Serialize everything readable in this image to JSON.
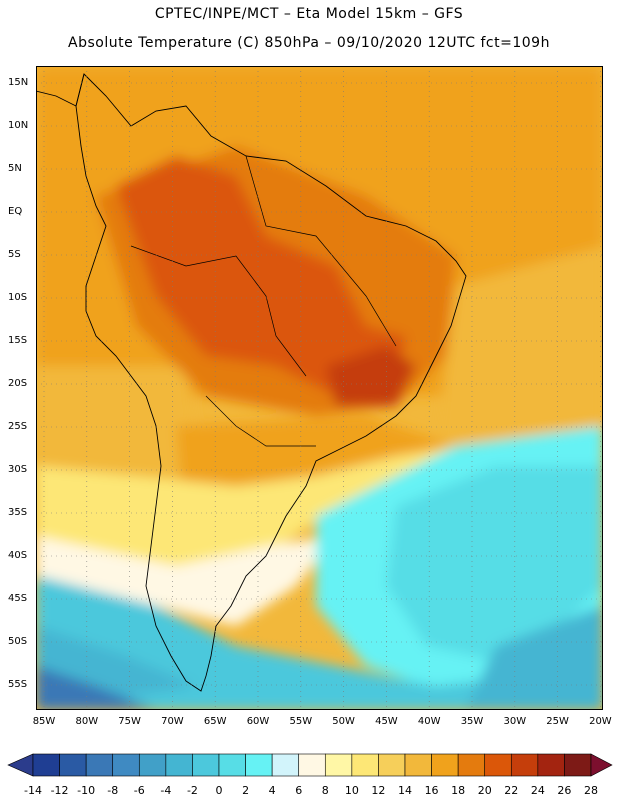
{
  "header": {
    "title_line1": "CPTEC/INPE/MCT –  Eta Model 15km – GFS",
    "title_line2": "Absolute Temperature (C) 850hPa – 09/10/2020 12UTC fct=109h"
  },
  "map": {
    "lat_labels": [
      "15N",
      "10N",
      "5N",
      "EQ",
      "5S",
      "10S",
      "15S",
      "20S",
      "25S",
      "30S",
      "35S",
      "40S",
      "45S",
      "50S",
      "55S"
    ],
    "lon_labels": [
      "85W",
      "80W",
      "75W",
      "70W",
      "65W",
      "60W",
      "55W",
      "50W",
      "45W",
      "40W",
      "35W",
      "30W",
      "25W",
      "20W"
    ],
    "fields": [
      {
        "name": "tropical-ocean-warm",
        "level": 20
      },
      {
        "name": "amazon-core",
        "level": 22
      },
      {
        "name": "andes-hot-band",
        "level": 24
      },
      {
        "name": "brazil-southeast-hot",
        "level": 24
      },
      {
        "name": "argentina-mid",
        "level": 16
      },
      {
        "name": "patagonia-cool",
        "level": 8
      },
      {
        "name": "south-atlantic-cold",
        "level": 2
      },
      {
        "name": "southern-ocean-cold",
        "level": 0
      }
    ]
  },
  "colorbar": {
    "tick_labels": [
      "-14",
      "-12",
      "-10",
      "-8",
      "-6",
      "-4",
      "-2",
      "0",
      "2",
      "4",
      "6",
      "8",
      "10",
      "12",
      "14",
      "16",
      "18",
      "20",
      "22",
      "24",
      "26",
      "28"
    ],
    "colors": [
      "#1f3e93",
      "#2a5aa4",
      "#3a78b6",
      "#3f8ac2",
      "#41a0c8",
      "#44b5d2",
      "#4cc8dc",
      "#57dde6",
      "#66f2f4",
      "#d2f4fb",
      "#fff8e4",
      "#fff7a6",
      "#fde776",
      "#f6cf5a",
      "#f2b83b",
      "#f0a21c",
      "#e47b0e",
      "#db5709",
      "#c53e0b",
      "#a32410",
      "#7d1a16"
    ],
    "under_color": "#2b3c8c",
    "over_color": "#7c0f2e"
  }
}
